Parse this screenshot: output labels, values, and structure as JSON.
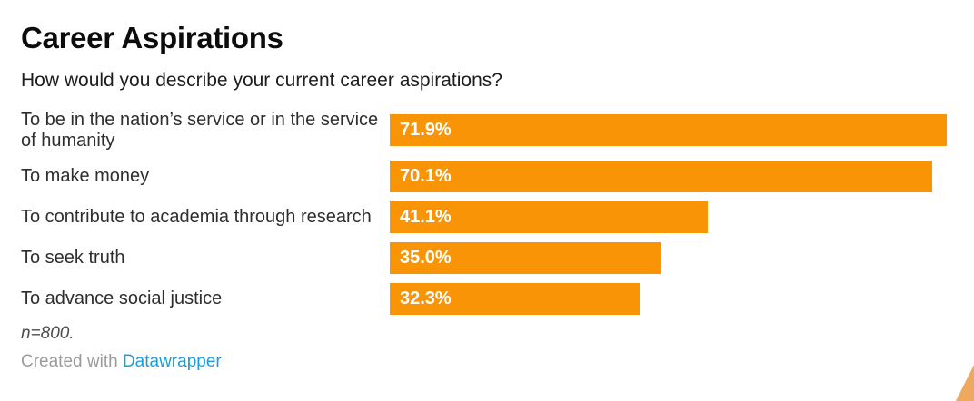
{
  "header": {
    "title": "Career Aspirations",
    "subtitle": "How would you describe your current career aspirations?"
  },
  "chart_data": {
    "type": "bar",
    "orientation": "horizontal",
    "title": "Career Aspirations",
    "subtitle": "How would you describe your current career aspirations?",
    "categories": [
      "To be in the nation’s service or in the service of humanity",
      "To make money",
      "To contribute to academia through research",
      "To seek truth",
      "To advance social justice"
    ],
    "values": [
      71.9,
      70.1,
      41.1,
      35.0,
      32.3
    ],
    "value_labels": [
      "71.9%",
      "70.1%",
      "41.1%",
      "35.0%",
      "32.3%"
    ],
    "xlabel": "",
    "ylabel": "",
    "xlim": [
      0,
      75
    ],
    "grid": false,
    "legend": false,
    "value_label_position": "inside-start"
  },
  "footer": {
    "note": "n=800.",
    "attribution_prefix": "Created with ",
    "attribution_link": "Datawrapper"
  },
  "colors": {
    "bar": "#f89406",
    "value_label": "#ffffff",
    "link": "#1d9bd9",
    "corner_triangle": "#efa95f"
  }
}
